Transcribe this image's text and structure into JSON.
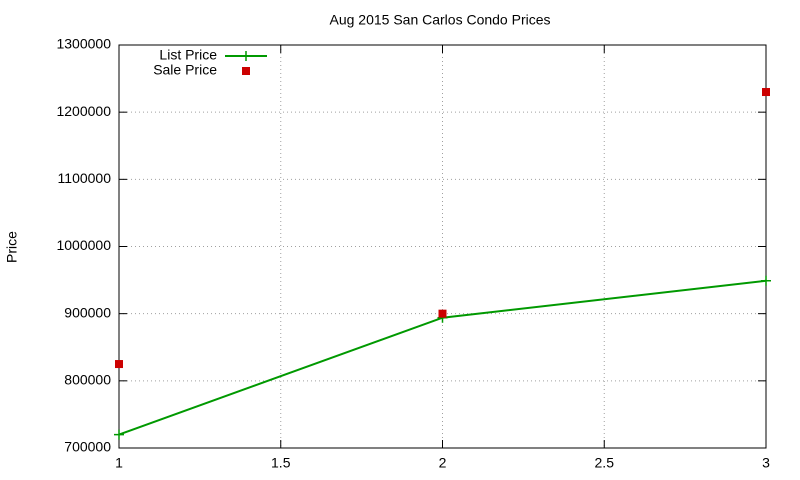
{
  "chart_data": {
    "type": "line",
    "title": "Aug 2015 San Carlos Condo Prices",
    "y_label": "Price",
    "x": [
      1,
      2,
      3
    ],
    "series": [
      {
        "name": "List Price",
        "color": "#009900",
        "style": "linespoints",
        "values": [
          720000,
          894000,
          949000
        ]
      },
      {
        "name": "Sale Price",
        "color": "#cc0000",
        "style": "points",
        "values": [
          825000,
          900000,
          1230000
        ]
      }
    ],
    "xlim": [
      1,
      3
    ],
    "xticks": [
      1,
      1.5,
      2,
      2.5,
      3
    ],
    "ylim": [
      700000,
      1300000
    ],
    "yticks": [
      700000,
      800000,
      900000,
      1000000,
      1100000,
      1200000,
      1300000
    ],
    "grid": true,
    "legend": "top-left"
  }
}
